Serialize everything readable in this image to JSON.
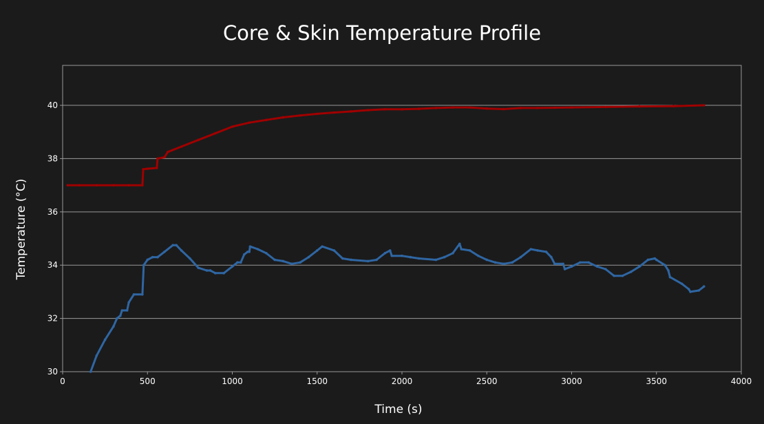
{
  "chart_data": {
    "type": "line",
    "title": "Core & Skin Temperature Profile",
    "xlabel": "Time (s)",
    "ylabel": "Temperature (°C)",
    "xlim": [
      0,
      4000
    ],
    "ylim": [
      30,
      41.5
    ],
    "xticks": [
      0,
      500,
      1000,
      1500,
      2000,
      2500,
      3000,
      3500,
      4000
    ],
    "yticks": [
      30,
      32,
      34,
      36,
      38,
      40
    ],
    "grid": "horizontal",
    "background": "#1b1b1b",
    "series": [
      {
        "color": "#a00000",
        "x": [
          30,
          100,
          200,
          300,
          390,
          470,
          475,
          500,
          555,
          560,
          600,
          620,
          700,
          800,
          900,
          1000,
          1100,
          1200,
          1300,
          1400,
          1500,
          1600,
          1700,
          1800,
          1900,
          2000,
          2100,
          2200,
          2300,
          2400,
          2500,
          2600,
          2700,
          2800,
          2900,
          3000,
          3200,
          3400,
          3600,
          3780
        ],
        "y": [
          37.0,
          37.0,
          37.0,
          37.0,
          37.0,
          37.0,
          37.6,
          37.62,
          37.65,
          38.0,
          38.05,
          38.25,
          38.45,
          38.7,
          38.95,
          39.2,
          39.35,
          39.45,
          39.55,
          39.62,
          39.68,
          39.73,
          39.77,
          39.82,
          39.85,
          39.85,
          39.87,
          39.9,
          39.92,
          39.92,
          39.88,
          39.86,
          39.9,
          39.9,
          39.91,
          39.92,
          39.94,
          39.96,
          39.97,
          40.0
        ]
      },
      {
        "color": "#2f66a3",
        "x": [
          165,
          200,
          250,
          300,
          320,
          340,
          350,
          380,
          390,
          420,
          470,
          478,
          500,
          530,
          560,
          600,
          650,
          670,
          700,
          750,
          800,
          850,
          870,
          900,
          950,
          1000,
          1030,
          1050,
          1070,
          1090,
          1100,
          1105,
          1150,
          1200,
          1250,
          1300,
          1350,
          1400,
          1450,
          1500,
          1530,
          1600,
          1650,
          1700,
          1800,
          1850,
          1900,
          1930,
          1940,
          2000,
          2050,
          2100,
          2200,
          2250,
          2300,
          2340,
          2350,
          2400,
          2450,
          2500,
          2550,
          2600,
          2650,
          2700,
          2760,
          2800,
          2850,
          2880,
          2900,
          2950,
          2960,
          3000,
          3050,
          3100,
          3150,
          3200,
          3250,
          3300,
          3350,
          3400,
          3450,
          3490,
          3500,
          3550,
          3570,
          3580,
          3650,
          3690,
          3700,
          3750,
          3780
        ],
        "y": [
          30.0,
          30.6,
          31.2,
          31.7,
          32.0,
          32.1,
          32.3,
          32.3,
          32.6,
          32.9,
          32.9,
          34.0,
          34.2,
          34.3,
          34.3,
          34.5,
          34.75,
          34.75,
          34.55,
          34.25,
          33.9,
          33.8,
          33.8,
          33.7,
          33.7,
          33.95,
          34.1,
          34.1,
          34.4,
          34.5,
          34.5,
          34.7,
          34.6,
          34.45,
          34.2,
          34.15,
          34.05,
          34.1,
          34.3,
          34.55,
          34.7,
          34.55,
          34.25,
          34.2,
          34.15,
          34.2,
          34.45,
          34.55,
          34.35,
          34.35,
          34.3,
          34.25,
          34.2,
          34.3,
          34.45,
          34.8,
          34.6,
          34.55,
          34.35,
          34.2,
          34.1,
          34.05,
          34.1,
          34.3,
          34.6,
          34.55,
          34.5,
          34.3,
          34.05,
          34.05,
          33.85,
          33.95,
          34.1,
          34.1,
          33.95,
          33.85,
          33.6,
          33.6,
          33.75,
          33.95,
          34.2,
          34.25,
          34.2,
          34.0,
          33.8,
          33.55,
          33.3,
          33.1,
          33.0,
          33.05,
          33.2
        ]
      }
    ]
  }
}
